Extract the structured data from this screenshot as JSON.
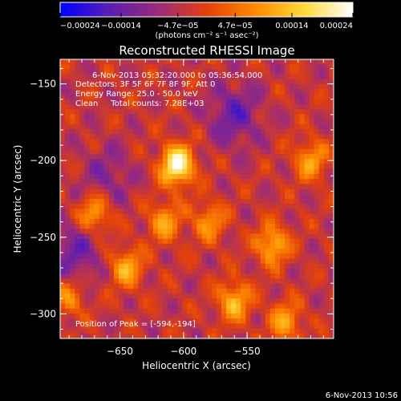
{
  "chart_data": {
    "type": "heatmap",
    "title": "Reconstructed RHESSI Image",
    "xlabel": "Heliocentric X (arcsec)",
    "ylabel": "Heliocentric Y (arcsec)",
    "xlim": [
      -697,
      -482
    ],
    "ylim": [
      -316,
      -134
    ],
    "x_ticks": [
      {
        "value": -650,
        "label": "−650"
      },
      {
        "value": -600,
        "label": "−600"
      },
      {
        "value": -550,
        "label": "−550"
      }
    ],
    "y_ticks": [
      {
        "value": -150,
        "label": "−150"
      },
      {
        "value": -200,
        "label": "−200"
      },
      {
        "value": -250,
        "label": "−250"
      },
      {
        "value": -300,
        "label": "−300"
      }
    ],
    "colorbar": {
      "min": -0.00024,
      "max": 0.00024,
      "ticks": [
        {
          "value": -0.00024,
          "label": "−0.00024"
        },
        {
          "value": -0.00014,
          "label": "−0.00014"
        },
        {
          "value": -4.7e-05,
          "label": "−4.7e−05"
        },
        {
          "value": 4.7e-05,
          "label": "4.7e−05"
        },
        {
          "value": 0.00014,
          "label": "0.00014"
        },
        {
          "value": 0.00024,
          "label": "0.00024"
        }
      ],
      "unit_label": "(photons cm⁻² s⁻¹ asec⁻²)",
      "colors": [
        "#0000ff",
        "#5a1eb4",
        "#9a2a7a",
        "#e2400c",
        "#ff8a00",
        "#ffd93a",
        "#ffffff"
      ]
    },
    "sources": [
      {
        "x": -605,
        "y": -203,
        "strength": 1.0
      },
      {
        "x": -670,
        "y": -235,
        "strength": 0.55
      },
      {
        "x": -615,
        "y": -240,
        "strength": 0.5
      },
      {
        "x": -530,
        "y": -255,
        "strength": 0.6
      },
      {
        "x": -645,
        "y": -270,
        "strength": 0.55
      },
      {
        "x": -560,
        "y": -292,
        "strength": 0.6
      },
      {
        "x": -520,
        "y": -305,
        "strength": 0.5
      },
      {
        "x": -500,
        "y": -200,
        "strength": 0.5
      },
      {
        "x": -580,
        "y": -240,
        "strength": 0.45
      },
      {
        "x": -690,
        "y": -290,
        "strength": 0.4
      }
    ],
    "negative_regions": [
      {
        "x": -685,
        "y": -260,
        "strength": 0.5
      },
      {
        "x": -560,
        "y": -170,
        "strength": 0.55
      },
      {
        "x": -660,
        "y": -210,
        "strength": 0.35
      }
    ]
  },
  "annotations": {
    "time_range": "6-Nov-2013 05:32:20.000 to 05:36:54.000",
    "detectors": "Detectors: 3F 5F 6F 7F 8F 9F, Att 0",
    "energy_range": "Energy Range: 25.0 - 50.0 keV",
    "clean_counts": "Clean     Total counts: 7.28E+03",
    "peak_position": "Position of Peak = [-594,-194]"
  },
  "footer_timestamp": "6-Nov-2013 10:56"
}
